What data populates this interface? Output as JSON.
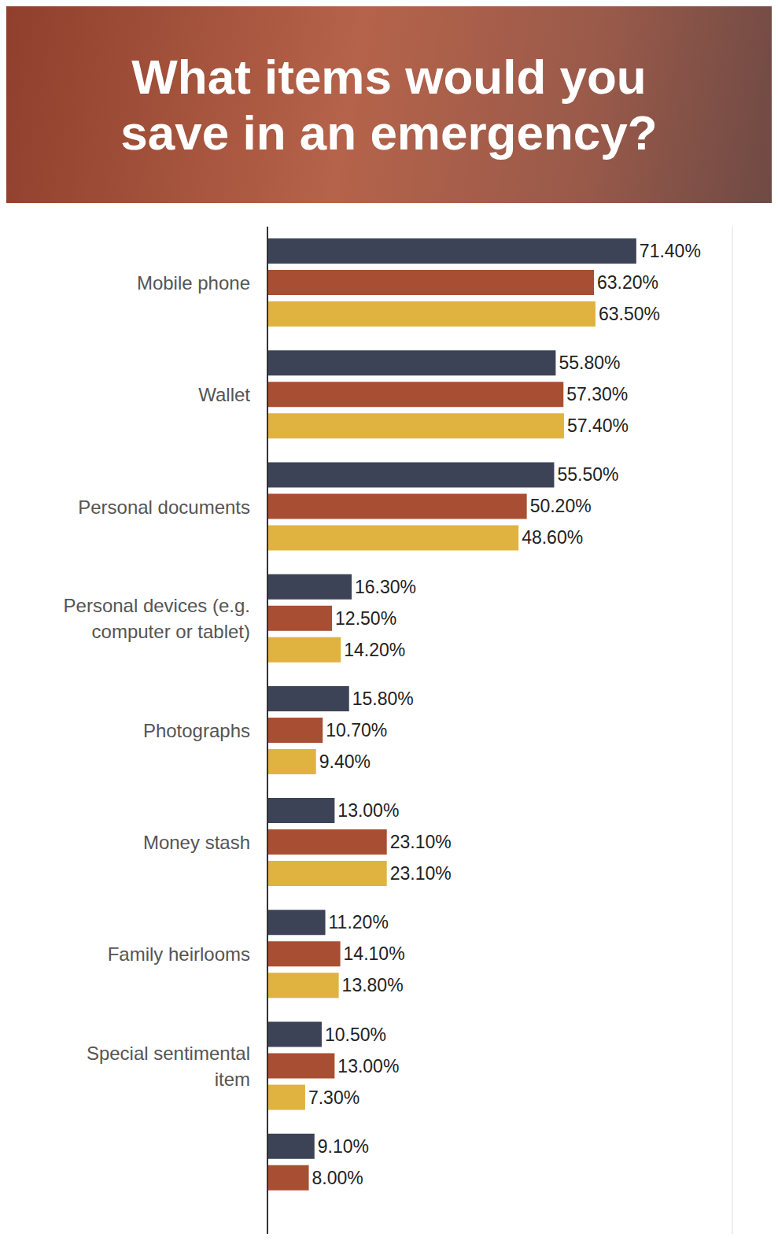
{
  "chart_data": {
    "type": "bar",
    "title": "What items would you save in an emergency?",
    "orientation": "horizontal",
    "categories": [
      "Mobile phone",
      "Wallet",
      "Personal documents",
      "Personal devices (e.g. computer or tablet)",
      "Photographs",
      "Money stash",
      "Family heirlooms",
      "Special sentimental item",
      null
    ],
    "series": [
      {
        "color": "#3d4357",
        "values": [
          71.4,
          55.8,
          55.5,
          16.3,
          15.8,
          13.0,
          11.2,
          10.5,
          9.1
        ],
        "value_labels": [
          "71.40%",
          "55.80%",
          "55.50%",
          "16.30%",
          "15.80%",
          "13.00%",
          "11.20%",
          "10.50%",
          "9.10%"
        ]
      },
      {
        "color": "#a84e32",
        "values": [
          63.2,
          57.3,
          50.2,
          12.5,
          10.7,
          23.1,
          14.1,
          13.0,
          8.0
        ],
        "value_labels": [
          "63.20%",
          "57.30%",
          "50.20%",
          "12.50%",
          "10.70%",
          "23.10%",
          "14.10%",
          "13.00%",
          "8.00%"
        ]
      },
      {
        "color": "#e0b341",
        "values": [
          63.5,
          57.4,
          48.6,
          14.2,
          9.4,
          23.1,
          13.8,
          7.3,
          null
        ],
        "value_labels": [
          "63.50%",
          "57.40%",
          "48.60%",
          "14.20%",
          "9.40%",
          "23.10%",
          "13.80%",
          "7.30%",
          null
        ]
      }
    ],
    "xlim": [
      0,
      90
    ],
    "xticks": [
      0,
      10,
      20,
      30,
      40,
      50,
      60,
      70,
      80,
      90
    ],
    "grid": true,
    "tick_labels": "y",
    "data_labels": true
  }
}
